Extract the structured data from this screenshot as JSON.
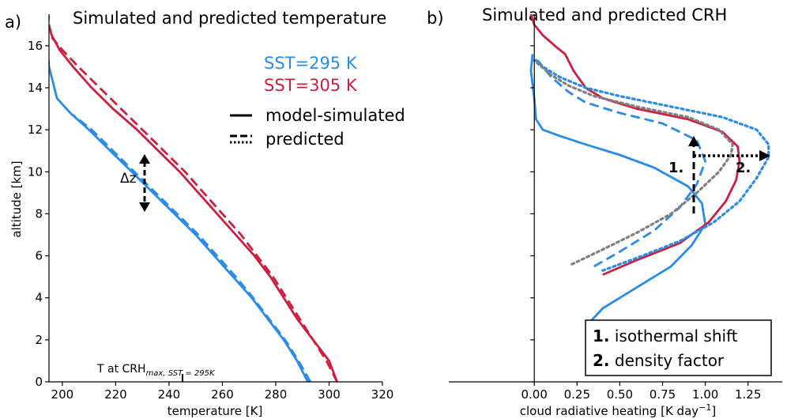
{
  "colors": {
    "blue": "#2a8be8",
    "red": "#cc1f3f",
    "gray": "#808080",
    "black": "#000000"
  },
  "chart_data": [
    {
      "type": "line",
      "panel_letter": "a)",
      "title": "Simulated and predicted temperature",
      "xlabel": "temperature [K]",
      "ylabel": "altitude [km]",
      "xlim": [
        195,
        320
      ],
      "ylim": [
        0,
        17.5
      ],
      "xticks": [
        200,
        220,
        240,
        260,
        280,
        300,
        320
      ],
      "yticks": [
        0,
        2,
        4,
        6,
        8,
        10,
        12,
        14,
        16
      ],
      "grid": false,
      "legend": {
        "placement": "top-right",
        "sst_295": "SST=295 K",
        "sst_305": "SST=305 K",
        "solid": "model-simulated",
        "dashed": "predicted"
      },
      "annotations": {
        "delta_z": "Δz",
        "crh_marker_prefix": "T at CRH",
        "crh_marker_sub": "max, SST = 295K",
        "crh_marker_x": 231
      },
      "series": [
        {
          "name": "SST=295 K",
          "style": "solid",
          "color": "blue",
          "x": [
            292,
            288,
            283,
            277,
            271,
            264,
            257,
            250,
            242,
            234,
            226,
            218,
            210,
            203,
            198,
            195,
            194,
            195
          ],
          "y": [
            0,
            1,
            2,
            3,
            4,
            5,
            6,
            7,
            8,
            9,
            10,
            11,
            12,
            12.8,
            13.5,
            15,
            16.5,
            17.4
          ]
        },
        {
          "name": "SST=295 K",
          "style": "dashed",
          "color": "blue",
          "x": [
            293,
            288.5,
            283.5,
            277.5,
            271.5,
            265,
            258,
            251,
            243,
            235,
            227,
            219,
            211,
            204
          ],
          "y": [
            0,
            1,
            2,
            3,
            4,
            5,
            6,
            7,
            8,
            9,
            10,
            11,
            12,
            12.7
          ]
        },
        {
          "name": "SST=305 K",
          "style": "solid",
          "color": "red",
          "x": [
            303,
            300,
            294,
            288,
            283,
            278,
            272,
            265,
            258,
            251,
            244,
            236,
            228,
            219,
            211,
            204,
            199,
            196,
            195
          ],
          "y": [
            0,
            1,
            2,
            3,
            4,
            5,
            6,
            7,
            8,
            9,
            10,
            11,
            12,
            13,
            14,
            15,
            15.8,
            16.5,
            17
          ]
        },
        {
          "name": "SST=305 K",
          "style": "dashed",
          "color": "red",
          "x": [
            303,
            299,
            294,
            289,
            284,
            279,
            273,
            267,
            260,
            253,
            246,
            238,
            230,
            222,
            214,
            206,
            200,
            196
          ],
          "y": [
            0,
            1,
            2,
            3,
            4,
            5,
            6,
            7,
            8,
            9,
            10,
            11,
            12,
            13,
            14,
            15,
            15.8,
            16.4
          ]
        }
      ]
    },
    {
      "type": "line",
      "panel_letter": "b)",
      "title": "Simulated and predicted CRH",
      "xlabel": "cloud radiative heating [K day",
      "xlabel_sup": "−1",
      "xlabel_end": "]",
      "ylim": [
        0,
        17.5
      ],
      "xlim": [
        -0.5,
        1.45
      ],
      "xticks": [
        "0.00",
        "0.25",
        "0.50",
        "0.75",
        "1.00",
        "1.25"
      ],
      "yticks": [
        0,
        2,
        4,
        6,
        8,
        10,
        12,
        14,
        16
      ],
      "grid": false,
      "legend": {
        "placement": "bottom-right",
        "item1_num": "1.",
        "item1_text": " isothermal shift",
        "item2_num": "2.",
        "item2_text": " density factor"
      },
      "annotations": {
        "arrow1": "1.",
        "arrow2": "2."
      },
      "series": [
        {
          "name": "SST=295 K",
          "style": "solid",
          "color": "blue",
          "x": [
            0.32,
            0.4,
            0.6,
            0.8,
            0.92,
            1.0,
            0.98,
            0.9,
            0.7,
            0.5,
            0.3,
            0.15,
            0.05,
            0.01,
            0.0,
            -0.02,
            -0.01
          ],
          "y": [
            2.8,
            3.5,
            4.5,
            5.5,
            6.5,
            7.5,
            8.5,
            9.3,
            10.2,
            10.8,
            11.3,
            11.7,
            12.0,
            12.5,
            13.5,
            14.8,
            15.6
          ]
        },
        {
          "name": "SST=295 K",
          "style": "dashed",
          "color": "blue",
          "x": [
            0.35,
            0.5,
            0.7,
            0.85,
            0.95,
            1.0,
            0.95,
            0.75,
            0.5,
            0.3,
            0.2,
            0.1,
            0.02
          ],
          "y": [
            5.5,
            6.2,
            7.2,
            8.3,
            9.4,
            10.5,
            11.5,
            12.3,
            12.8,
            13.3,
            13.8,
            14.5,
            15.3
          ]
        },
        {
          "name": "SST=305 K",
          "style": "solid",
          "color": "red",
          "x": [
            0.4,
            0.6,
            0.85,
            1.02,
            1.12,
            1.18,
            1.2,
            1.19,
            1.1,
            0.9,
            0.6,
            0.4,
            0.3,
            0.23,
            0.18,
            0.12,
            0.05,
            0.0,
            -0.02
          ],
          "y": [
            5.1,
            5.8,
            6.6,
            7.6,
            8.6,
            9.6,
            10.5,
            11.2,
            11.9,
            12.5,
            13.0,
            13.5,
            14.0,
            14.8,
            15.6,
            16.0,
            16.5,
            17.0,
            17.5
          ]
        },
        {
          "name": "SST=305 K",
          "style": "dotted",
          "color": "blue",
          "x": [
            0.4,
            0.6,
            0.85,
            1.05,
            1.2,
            1.3,
            1.37,
            1.37,
            1.3,
            1.1,
            0.8,
            0.5,
            0.3,
            0.15,
            0.05,
            0.0
          ],
          "y": [
            5.3,
            5.9,
            6.7,
            7.6,
            8.6,
            9.7,
            10.7,
            11.3,
            12.0,
            12.6,
            13.1,
            13.6,
            14.0,
            14.5,
            15.0,
            15.4
          ]
        },
        {
          "name": "",
          "style": "dotted",
          "color": "gray",
          "x": [
            0.22,
            0.4,
            0.6,
            0.8,
            0.95,
            1.08,
            1.15,
            1.16,
            1.08,
            0.9,
            0.6,
            0.35,
            0.2,
            0.1,
            0.0
          ],
          "y": [
            5.6,
            6.3,
            7.1,
            8.0,
            9.0,
            10.0,
            10.8,
            11.3,
            12.0,
            12.6,
            13.1,
            13.6,
            14.1,
            14.6,
            15.3
          ]
        }
      ]
    }
  ]
}
